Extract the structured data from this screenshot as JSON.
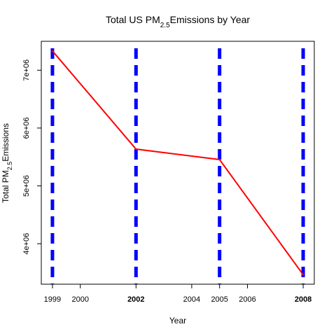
{
  "chart_data": {
    "type": "line",
    "title": {
      "prefix": "Total US PM",
      "subscript": "2.5",
      "suffix": "Emissions by Year"
    },
    "xlabel": "Year",
    "ylabel": {
      "prefix": "Total PM",
      "subscript": "2.5",
      "suffix": "Emissions"
    },
    "x": [
      1999,
      2002,
      2005,
      2008
    ],
    "series": [
      {
        "values": [
          7332967,
          5635780,
          5454703,
          3464206
        ],
        "color": "#ff0000"
      }
    ],
    "xlim": [
      1998.6,
      2008.4
    ],
    "ylim": [
      3300000,
      7500000
    ],
    "x_ticks": [
      {
        "value": 1999,
        "label": "1999",
        "bold": false
      },
      {
        "value": 2000,
        "label": "2000",
        "bold": false
      },
      {
        "value": 2002,
        "label": "2002",
        "bold": true
      },
      {
        "value": 2004,
        "label": "2004",
        "bold": false
      },
      {
        "value": 2005,
        "label": "2005",
        "bold": false
      },
      {
        "value": 2006,
        "label": "2006",
        "bold": false
      },
      {
        "value": 2008,
        "label": "2008",
        "bold": true
      }
    ],
    "y_ticks": [
      {
        "value": 4000000,
        "label": "4e+06"
      },
      {
        "value": 5000000,
        "label": "5e+06"
      },
      {
        "value": 6000000,
        "label": "6e+06"
      },
      {
        "value": 7000000,
        "label": "7e+06"
      }
    ],
    "vertical_lines": [
      1999,
      2002,
      2005,
      2008
    ],
    "vertical_line_color": "#0000ff",
    "grid": false,
    "legend": "none"
  }
}
